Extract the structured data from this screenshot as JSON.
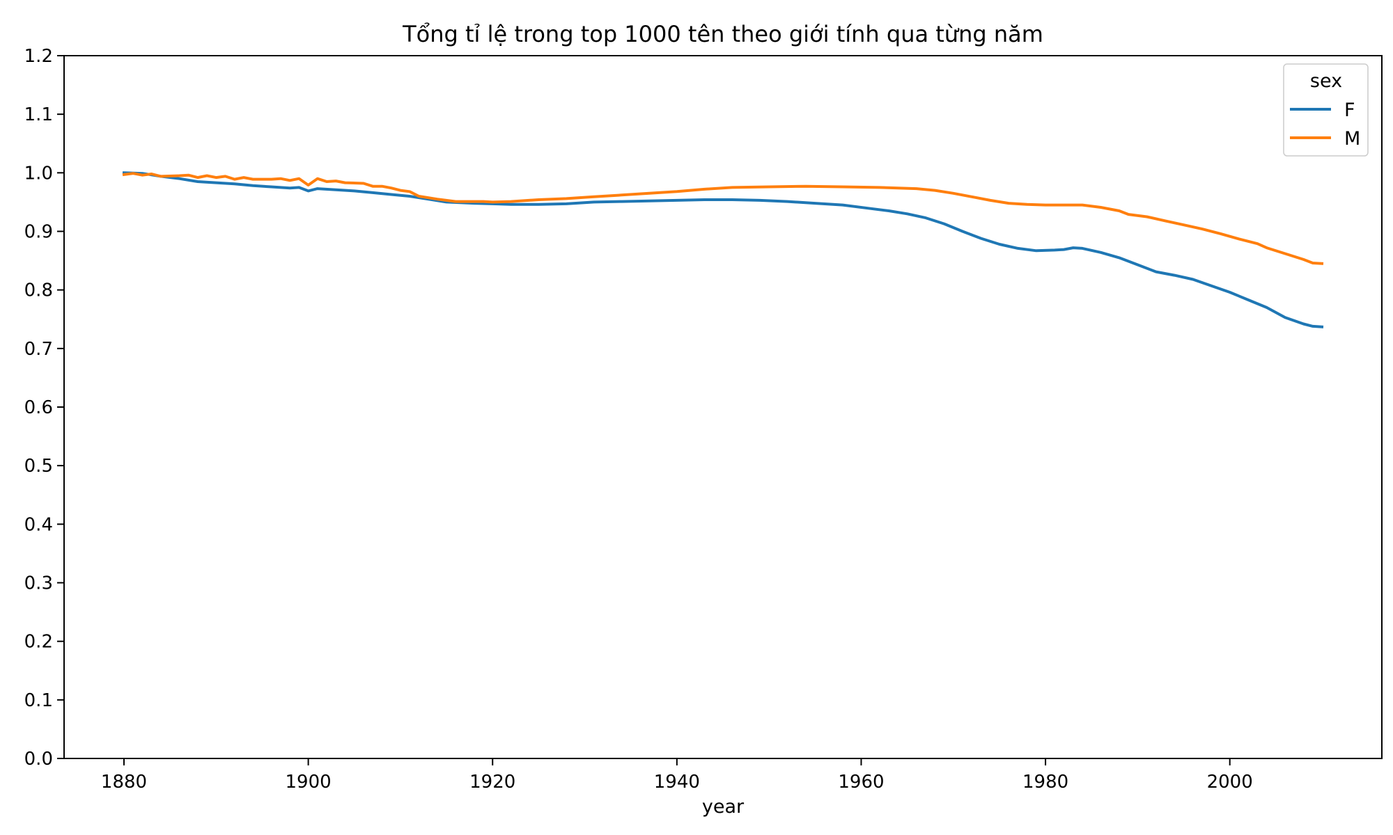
{
  "chart_data": {
    "type": "line",
    "title": "Tổng tỉ lệ trong top 1000 tên theo giới tính qua từng năm",
    "xlabel": "year",
    "ylabel": "",
    "xlim": [
      1873.5,
      2016.5
    ],
    "ylim": [
      0.0,
      1.2
    ],
    "xticks": [
      1880,
      1900,
      1920,
      1940,
      1960,
      1980,
      2000
    ],
    "xtick_labels": [
      "1880",
      "1900",
      "1920",
      "1940",
      "1960",
      "1980",
      "2000"
    ],
    "yticks": [
      0.0,
      0.1,
      0.2,
      0.3,
      0.4,
      0.5,
      0.6,
      0.7,
      0.8,
      0.9,
      1.0,
      1.1,
      1.2
    ],
    "ytick_labels": [
      "0.0",
      "0.1",
      "0.2",
      "0.3",
      "0.4",
      "0.5",
      "0.6",
      "0.7",
      "0.8",
      "0.9",
      "1.0",
      "1.1",
      "1.2"
    ],
    "grid": false,
    "legend": {
      "title": "sex",
      "placement": "top-right"
    },
    "series": [
      {
        "name": "F",
        "color": "#1f77b4",
        "points": [
          [
            1880,
            1.0
          ],
          [
            1882,
            0.999
          ],
          [
            1884,
            0.994
          ],
          [
            1886,
            0.99
          ],
          [
            1888,
            0.985
          ],
          [
            1890,
            0.983
          ],
          [
            1892,
            0.981
          ],
          [
            1894,
            0.978
          ],
          [
            1896,
            0.976
          ],
          [
            1898,
            0.974
          ],
          [
            1899,
            0.975
          ],
          [
            1900,
            0.969
          ],
          [
            1901,
            0.973
          ],
          [
            1903,
            0.971
          ],
          [
            1905,
            0.969
          ],
          [
            1907,
            0.966
          ],
          [
            1909,
            0.963
          ],
          [
            1911,
            0.96
          ],
          [
            1913,
            0.955
          ],
          [
            1915,
            0.95
          ],
          [
            1918,
            0.948
          ],
          [
            1920,
            0.947
          ],
          [
            1922,
            0.946
          ],
          [
            1925,
            0.946
          ],
          [
            1928,
            0.947
          ],
          [
            1931,
            0.95
          ],
          [
            1934,
            0.951
          ],
          [
            1937,
            0.952
          ],
          [
            1940,
            0.953
          ],
          [
            1943,
            0.954
          ],
          [
            1946,
            0.954
          ],
          [
            1949,
            0.953
          ],
          [
            1952,
            0.951
          ],
          [
            1955,
            0.948
          ],
          [
            1958,
            0.945
          ],
          [
            1961,
            0.939
          ],
          [
            1963,
            0.935
          ],
          [
            1965,
            0.93
          ],
          [
            1967,
            0.923
          ],
          [
            1969,
            0.913
          ],
          [
            1971,
            0.9
          ],
          [
            1973,
            0.888
          ],
          [
            1975,
            0.878
          ],
          [
            1977,
            0.871
          ],
          [
            1979,
            0.867
          ],
          [
            1981,
            0.868
          ],
          [
            1982,
            0.869
          ],
          [
            1983,
            0.872
          ],
          [
            1984,
            0.871
          ],
          [
            1986,
            0.864
          ],
          [
            1988,
            0.855
          ],
          [
            1990,
            0.843
          ],
          [
            1992,
            0.831
          ],
          [
            1994,
            0.825
          ],
          [
            1996,
            0.818
          ],
          [
            1998,
            0.807
          ],
          [
            2000,
            0.796
          ],
          [
            2002,
            0.783
          ],
          [
            2004,
            0.77
          ],
          [
            2006,
            0.753
          ],
          [
            2008,
            0.742
          ],
          [
            2009,
            0.738
          ],
          [
            2010,
            0.737
          ]
        ]
      },
      {
        "name": "M",
        "color": "#ff7f0e",
        "points": [
          [
            1880,
            0.997
          ],
          [
            1881,
            0.999
          ],
          [
            1882,
            0.996
          ],
          [
            1883,
            0.998
          ],
          [
            1884,
            0.994
          ],
          [
            1886,
            0.995
          ],
          [
            1887,
            0.996
          ],
          [
            1888,
            0.992
          ],
          [
            1889,
            0.995
          ],
          [
            1890,
            0.992
          ],
          [
            1891,
            0.994
          ],
          [
            1892,
            0.989
          ],
          [
            1893,
            0.992
          ],
          [
            1894,
            0.989
          ],
          [
            1896,
            0.989
          ],
          [
            1897,
            0.99
          ],
          [
            1898,
            0.987
          ],
          [
            1899,
            0.99
          ],
          [
            1900,
            0.979
          ],
          [
            1901,
            0.99
          ],
          [
            1902,
            0.985
          ],
          [
            1903,
            0.986
          ],
          [
            1904,
            0.983
          ],
          [
            1906,
            0.982
          ],
          [
            1907,
            0.977
          ],
          [
            1908,
            0.977
          ],
          [
            1909,
            0.974
          ],
          [
            1910,
            0.97
          ],
          [
            1911,
            0.968
          ],
          [
            1912,
            0.96
          ],
          [
            1914,
            0.955
          ],
          [
            1916,
            0.951
          ],
          [
            1919,
            0.951
          ],
          [
            1920,
            0.95
          ],
          [
            1922,
            0.951
          ],
          [
            1925,
            0.954
          ],
          [
            1928,
            0.956
          ],
          [
            1931,
            0.959
          ],
          [
            1934,
            0.962
          ],
          [
            1937,
            0.965
          ],
          [
            1940,
            0.968
          ],
          [
            1943,
            0.972
          ],
          [
            1946,
            0.975
          ],
          [
            1950,
            0.976
          ],
          [
            1954,
            0.977
          ],
          [
            1958,
            0.976
          ],
          [
            1962,
            0.975
          ],
          [
            1966,
            0.973
          ],
          [
            1968,
            0.97
          ],
          [
            1970,
            0.965
          ],
          [
            1972,
            0.959
          ],
          [
            1974,
            0.953
          ],
          [
            1976,
            0.948
          ],
          [
            1978,
            0.946
          ],
          [
            1980,
            0.945
          ],
          [
            1982,
            0.945
          ],
          [
            1984,
            0.945
          ],
          [
            1986,
            0.941
          ],
          [
            1988,
            0.935
          ],
          [
            1989,
            0.929
          ],
          [
            1991,
            0.925
          ],
          [
            1993,
            0.918
          ],
          [
            1995,
            0.911
          ],
          [
            1997,
            0.904
          ],
          [
            1999,
            0.896
          ],
          [
            2001,
            0.887
          ],
          [
            2003,
            0.879
          ],
          [
            2004,
            0.872
          ],
          [
            2006,
            0.862
          ],
          [
            2008,
            0.852
          ],
          [
            2009,
            0.846
          ],
          [
            2010,
            0.845
          ]
        ]
      }
    ]
  }
}
